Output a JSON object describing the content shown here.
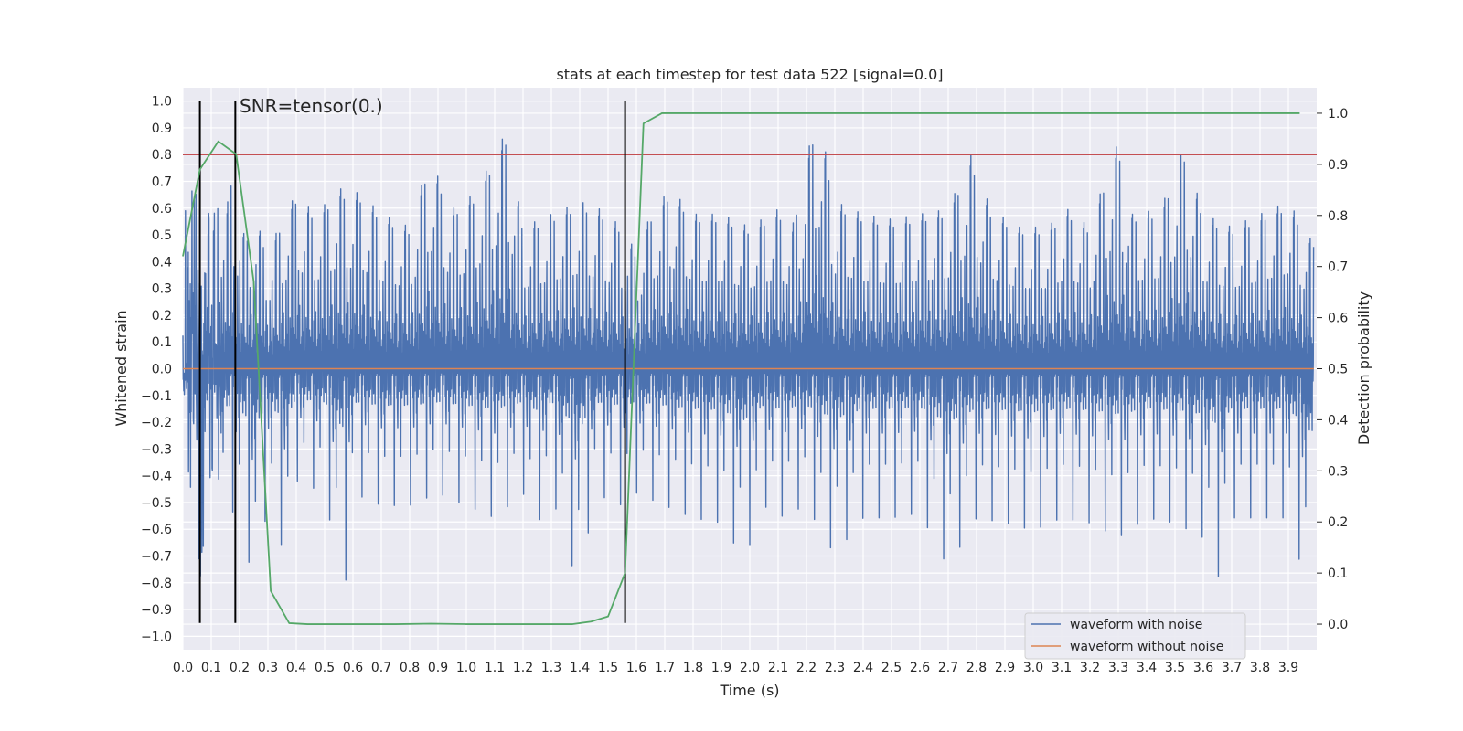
{
  "chart_data": {
    "type": "line",
    "title": "stats at each timestep for test data 522 [signal=0.0]",
    "xlabel": "Time (s)",
    "ylabel": "Whitened strain",
    "y2label": "Detection probability",
    "annotation": "SNR=tensor(0.)",
    "xlim": [
      0.0,
      4.0
    ],
    "ylim": [
      -1.05,
      1.05
    ],
    "y2lim": [
      -0.05,
      1.05
    ],
    "xticks": [
      "0.0",
      "0.1",
      "0.2",
      "0.3",
      "0.4",
      "0.5",
      "0.6",
      "0.7",
      "0.8",
      "0.9",
      "1.0",
      "1.1",
      "1.2",
      "1.3",
      "1.4",
      "1.5",
      "1.6",
      "1.7",
      "1.8",
      "1.9",
      "2.0",
      "2.1",
      "2.2",
      "2.3",
      "2.4",
      "2.5",
      "2.6",
      "2.7",
      "2.8",
      "2.9",
      "3.0",
      "3.1",
      "3.2",
      "3.3",
      "3.4",
      "3.5",
      "3.6",
      "3.7",
      "3.8",
      "3.9"
    ],
    "yticks": [
      "1.0",
      "0.9",
      "0.8",
      "0.7",
      "0.6",
      "0.5",
      "0.4",
      "0.3",
      "0.2",
      "0.1",
      "0.0",
      "−0.1",
      "−0.2",
      "−0.3",
      "−0.4",
      "−0.5",
      "−0.6",
      "−0.7",
      "−0.8",
      "−0.9",
      "−1.0"
    ],
    "y2ticks": [
      "1.0",
      "0.9",
      "0.8",
      "0.7",
      "0.6",
      "0.5",
      "0.4",
      "0.3",
      "0.2",
      "0.1",
      "0.0"
    ],
    "grid": true,
    "legend_position": "lower-right",
    "series": [
      {
        "name": "waveform with noise",
        "axis": "left",
        "color": "#4c72b0",
        "style": "dense-noise",
        "upper_envelope": [
          [
            0.0,
            0.5
          ],
          [
            0.02,
            0.73
          ],
          [
            0.06,
            0.7
          ],
          [
            0.1,
            0.55
          ],
          [
            0.12,
            0.68
          ],
          [
            0.15,
            0.58
          ],
          [
            0.17,
            0.75
          ],
          [
            0.22,
            0.5
          ],
          [
            0.25,
            0.6
          ],
          [
            0.3,
            0.45
          ],
          [
            0.35,
            0.58
          ],
          [
            0.4,
            0.68
          ],
          [
            0.47,
            0.6
          ],
          [
            0.55,
            0.7
          ],
          [
            0.63,
            0.68
          ],
          [
            0.7,
            0.6
          ],
          [
            0.8,
            0.55
          ],
          [
            0.87,
            0.82
          ],
          [
            0.95,
            0.62
          ],
          [
            1.03,
            0.68
          ],
          [
            1.14,
            0.92
          ],
          [
            1.2,
            0.55
          ],
          [
            1.3,
            0.6
          ],
          [
            1.4,
            0.65
          ],
          [
            1.47,
            0.62
          ],
          [
            1.55,
            0.55
          ],
          [
            1.6,
            0.45
          ],
          [
            1.65,
            0.6
          ],
          [
            1.72,
            0.7
          ],
          [
            1.8,
            0.6
          ],
          [
            1.9,
            0.6
          ],
          [
            2.0,
            0.55
          ],
          [
            2.1,
            0.62
          ],
          [
            2.15,
            0.55
          ],
          [
            2.2,
            0.82
          ],
          [
            2.24,
            1.0
          ],
          [
            2.3,
            0.65
          ],
          [
            2.4,
            0.6
          ],
          [
            2.5,
            0.58
          ],
          [
            2.6,
            0.6
          ],
          [
            2.7,
            0.62
          ],
          [
            2.78,
            0.83
          ],
          [
            2.85,
            0.62
          ],
          [
            2.95,
            0.55
          ],
          [
            3.05,
            0.55
          ],
          [
            3.12,
            0.62
          ],
          [
            3.2,
            0.55
          ],
          [
            3.27,
            0.8
          ],
          [
            3.3,
            0.88
          ],
          [
            3.35,
            0.6
          ],
          [
            3.45,
            0.62
          ],
          [
            3.53,
            0.86
          ],
          [
            3.6,
            0.6
          ],
          [
            3.7,
            0.55
          ],
          [
            3.8,
            0.6
          ],
          [
            3.9,
            0.65
          ],
          [
            3.98,
            0.5
          ]
        ],
        "lower_envelope": [
          [
            0.0,
            -0.25
          ],
          [
            0.05,
            -0.62
          ],
          [
            0.06,
            -0.8
          ],
          [
            0.1,
            -0.4
          ],
          [
            0.15,
            -0.55
          ],
          [
            0.2,
            -0.6
          ],
          [
            0.25,
            -0.87
          ],
          [
            0.3,
            -0.55
          ],
          [
            0.36,
            -0.75
          ],
          [
            0.4,
            -0.45
          ],
          [
            0.5,
            -0.5
          ],
          [
            0.57,
            -0.92
          ],
          [
            0.6,
            -0.5
          ],
          [
            0.7,
            -0.55
          ],
          [
            0.8,
            -0.55
          ],
          [
            0.9,
            -0.5
          ],
          [
            1.0,
            -0.55
          ],
          [
            1.1,
            -0.6
          ],
          [
            1.2,
            -0.5
          ],
          [
            1.25,
            -0.63
          ],
          [
            1.3,
            -0.5
          ],
          [
            1.4,
            -0.9
          ],
          [
            1.45,
            -0.5
          ],
          [
            1.55,
            -0.55
          ],
          [
            1.6,
            -0.5
          ],
          [
            1.7,
            -0.55
          ],
          [
            1.8,
            -0.6
          ],
          [
            1.9,
            -0.62
          ],
          [
            1.98,
            -0.77
          ],
          [
            2.05,
            -0.55
          ],
          [
            2.1,
            -0.6
          ],
          [
            2.2,
            -0.55
          ],
          [
            2.3,
            -0.75
          ],
          [
            2.4,
            -0.6
          ],
          [
            2.5,
            -0.6
          ],
          [
            2.6,
            -0.58
          ],
          [
            2.7,
            -0.8
          ],
          [
            2.8,
            -0.6
          ],
          [
            2.9,
            -0.62
          ],
          [
            3.0,
            -0.65
          ],
          [
            3.1,
            -0.6
          ],
          [
            3.2,
            -0.62
          ],
          [
            3.3,
            -0.68
          ],
          [
            3.4,
            -0.6
          ],
          [
            3.5,
            -0.62
          ],
          [
            3.6,
            -0.68
          ],
          [
            3.65,
            -0.85
          ],
          [
            3.7,
            -0.6
          ],
          [
            3.8,
            -0.6
          ],
          [
            3.9,
            -0.6
          ],
          [
            3.98,
            -0.95
          ]
        ]
      },
      {
        "name": "waveform without noise",
        "axis": "left",
        "color": "#dd8452",
        "x": [
          0.0,
          3.99
        ],
        "y": [
          0.0,
          0.0
        ]
      },
      {
        "name": "",
        "axis": "right",
        "color": "#55a868",
        "x": [
          0.0,
          0.06,
          0.125,
          0.188,
          0.25,
          0.31,
          0.375,
          0.44,
          0.5,
          0.625,
          0.75,
          0.875,
          1.0,
          1.125,
          1.25,
          1.375,
          1.44,
          1.5,
          1.56,
          1.625,
          1.69,
          1.75,
          2.0,
          2.5,
          3.0,
          3.5,
          3.94
        ],
        "y": [
          0.72,
          0.89,
          0.945,
          0.92,
          0.67,
          0.065,
          0.002,
          0.0,
          0.0,
          0.0,
          0.0,
          0.001,
          0.0,
          0.0,
          0.0,
          0.0,
          0.005,
          0.015,
          0.1,
          0.98,
          1.0,
          1.0,
          1.0,
          1.0,
          1.0,
          1.0,
          1.0
        ]
      }
    ],
    "reference_lines": {
      "threshold_y": 0.8,
      "threshold_color": "#c44e52",
      "vertical_x": [
        0.06,
        0.185,
        1.56
      ],
      "vertical_color": "#000000"
    }
  }
}
